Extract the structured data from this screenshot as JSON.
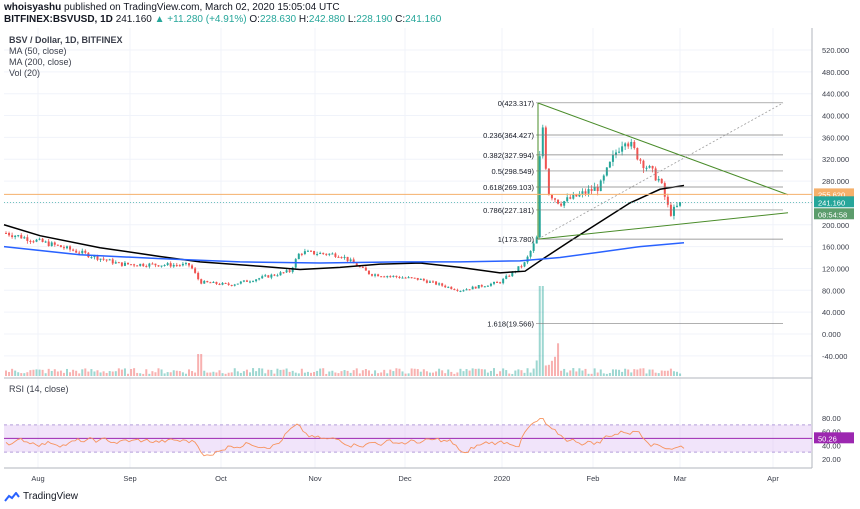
{
  "header": {
    "user": "whoisyashu",
    "published": "published on TradingView.com, March 02, 2020 15:05:04 UTC",
    "symbol": "BITFINEX:BSVUSD, 1D",
    "last": "241.160",
    "change": "▲ +11.280 (+4.91%)",
    "open_label": "O:",
    "open": "228.630",
    "high_label": "H:",
    "high": "242.880",
    "low_label": "L:",
    "low": "228.190",
    "close_label": "C:",
    "close": "241.160"
  },
  "legend": {
    "title": "BSV / Dollar, 1D, BITFINEX",
    "ma50": "MA (50, close)",
    "ma200": "MA (200, close)",
    "vol": "Vol (20)",
    "rsi": "RSI (14, close)"
  },
  "footer": {
    "brand": "TradingView"
  },
  "colors": {
    "up": "#26a69a",
    "down": "#ef5350",
    "ma50": "#000000",
    "ma200": "#2962ff",
    "fib": "#808080",
    "triangle": "#4a8c2a",
    "rsi": "#f7935e",
    "rsiBand": "#e1c4f5",
    "rsiMid": "#9c27b0",
    "tagPrice": "#26a69a",
    "tagLevel": "#f5b06b",
    "tagTime": "#5b9c6b",
    "tagRsi": "#9c27b0"
  },
  "chart_data": {
    "type": "candlestick",
    "price_axis": {
      "ticks": [
        520,
        480,
        440,
        400,
        360,
        320,
        280,
        240,
        200,
        160,
        120,
        80,
        40,
        0,
        -40
      ],
      "labels": [
        "520.000",
        "480.000",
        "440.000",
        "400.000",
        "360.000",
        "320.000",
        "280.000",
        "240.000",
        "200.000",
        "160.000",
        "120.000",
        "80.000",
        "40.000",
        "0.000",
        "-40.000"
      ]
    },
    "rsi_axis": {
      "ticks": [
        80,
        60,
        40,
        20
      ],
      "labels": [
        "80.00",
        "60.00",
        "40.00",
        "20.00"
      ],
      "band": [
        30,
        70
      ]
    },
    "time_axis": [
      "Aug",
      "Sep",
      "Oct",
      "Nov",
      "Dec",
      "2020",
      "Feb",
      "Mar",
      "Apr"
    ],
    "tags": {
      "level": "255.620",
      "price": "241.160",
      "time": "08:54:58",
      "rsi": "50.26"
    },
    "fib_levels": [
      {
        "label": "0(423.317)",
        "value": 423.317
      },
      {
        "label": "0.236(364.427)",
        "value": 364.427
      },
      {
        "label": "0.382(327.994)",
        "value": 327.994
      },
      {
        "label": "0.5(298.549)",
        "value": 298.549
      },
      {
        "label": "0.618(269.103)",
        "value": 269.103
      },
      {
        "label": "0.786(227.181)",
        "value": 227.181
      },
      {
        "label": "1(173.780)",
        "value": 173.78
      },
      {
        "label": "1.618(19.566)",
        "value": 19.566
      }
    ]
  }
}
